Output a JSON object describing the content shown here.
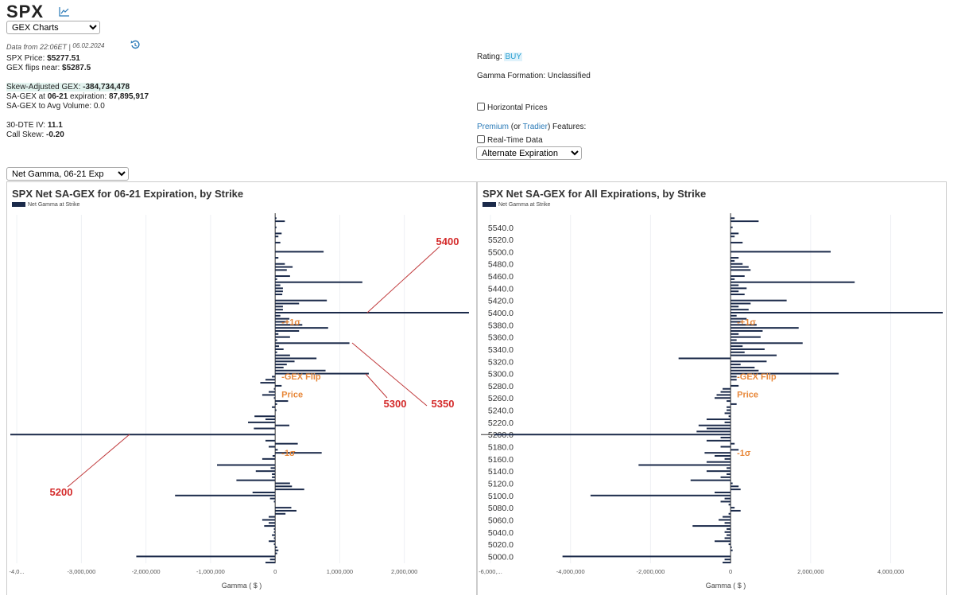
{
  "header": {
    "symbol": "SPX",
    "chart_icon": "line-chart-icon",
    "view_select": "GEX Charts",
    "data_from": "Data from 22:06ET |",
    "date": "06.02.2024",
    "refresh_icon": "history-icon"
  },
  "stats": {
    "price_label": "SPX Price: ",
    "price": "$5277.51",
    "flip_label": "GEX flips near: ",
    "flip": "$5287.5",
    "sagex_label": "Skew-Adjusted GEX: ",
    "sagex": "-384,734,478",
    "sagex_exp_label_a": "SA-GEX at ",
    "sagex_exp_date": "06-21",
    "sagex_exp_label_b": " expiration: ",
    "sagex_exp": "87,895,917",
    "avgvol": "SA-GEX to Avg Volume: 0.0",
    "iv_label": "30-DTE IV: ",
    "iv": "11.1",
    "skew_label": "Call Skew: ",
    "skew": "-0.20"
  },
  "right_info": {
    "rating_label": "Rating: ",
    "rating": "BUY",
    "formation": "Gamma Formation: Unclassified",
    "horizontal": "Horizontal Prices",
    "premium": "Premium",
    "or": " (or ",
    "tradier": "Tradier",
    "features": ") Features:",
    "realtime": "Real-Time Data",
    "alt_exp": "Alternate Expiration"
  },
  "chart_select": "Net Gamma, 06-21 Exp",
  "colors": {
    "bar": "#1b2a4a",
    "annot": "#e8883a",
    "red": "#d42a2a",
    "rating_bg": "#dff2fb"
  },
  "chart_data": [
    {
      "type": "bar",
      "title": "SPX Net SA-GEX for 06-21 Expiration, by Strike",
      "legend": "Net Gamma at Strike",
      "xlabel": "Gamma ( $ )",
      "xlim": [
        -4100000,
        3050000
      ],
      "xticks": [
        {
          "v": -4000000,
          "l": "-4,0..."
        },
        {
          "v": -3000000,
          "l": "-3,000,000"
        },
        {
          "v": -2000000,
          "l": "-2,000,000"
        },
        {
          "v": -1000000,
          "l": "-1,000,000"
        },
        {
          "v": 0,
          "l": "0"
        },
        {
          "v": 1000000,
          "l": "1,000,000"
        },
        {
          "v": 2000000,
          "l": "2,000,000"
        }
      ],
      "yticks": [],
      "bars": [
        [
          5555,
          0.02
        ],
        [
          5550,
          0.15
        ],
        [
          5540,
          0.02
        ],
        [
          5530,
          0.1
        ],
        [
          5525,
          0.05
        ],
        [
          5515,
          0.08
        ],
        [
          5500,
          0.75
        ],
        [
          5490,
          0.05
        ],
        [
          5480,
          0.15
        ],
        [
          5475,
          0.27
        ],
        [
          5470,
          0.18
        ],
        [
          5460,
          0.23
        ],
        [
          5455,
          0.03
        ],
        [
          5450,
          1.35
        ],
        [
          5445,
          0.08
        ],
        [
          5440,
          0.12
        ],
        [
          5435,
          0.12
        ],
        [
          5430,
          0.11
        ],
        [
          5420,
          0.8
        ],
        [
          5415,
          0.37
        ],
        [
          5410,
          0.12
        ],
        [
          5405,
          0.12
        ],
        [
          5400,
          3.0
        ],
        [
          5395,
          0.08
        ],
        [
          5390,
          0.22
        ],
        [
          5385,
          0.2
        ],
        [
          5380,
          0.42
        ],
        [
          5375,
          0.82
        ],
        [
          5370,
          0.37
        ],
        [
          5365,
          0.05
        ],
        [
          5360,
          0.23
        ],
        [
          5355,
          0.03
        ],
        [
          5350,
          1.15
        ],
        [
          5345,
          0.06
        ],
        [
          5340,
          0.13
        ],
        [
          5335,
          0.03
        ],
        [
          5330,
          0.23
        ],
        [
          5325,
          0.64
        ],
        [
          5320,
          0.3
        ],
        [
          5315,
          0.18
        ],
        [
          5310,
          0.13
        ],
        [
          5305,
          0.78
        ],
        [
          5300,
          1.45
        ],
        [
          5295,
          -0.05
        ],
        [
          5290,
          -0.15
        ],
        [
          5285,
          -0.23
        ],
        [
          5280,
          0.1
        ],
        [
          5275,
          -0.02
        ],
        [
          5270,
          -0.1
        ],
        [
          5265,
          -0.2
        ],
        [
          5260,
          -0.02
        ],
        [
          5255,
          0.2
        ],
        [
          5250,
          0.03
        ],
        [
          5245,
          -0.05
        ],
        [
          5240,
          0.02
        ],
        [
          5230,
          -0.32
        ],
        [
          5225,
          -0.15
        ],
        [
          5220,
          -0.42
        ],
        [
          5215,
          0.22
        ],
        [
          5210,
          -0.33
        ],
        [
          5200,
          -4.1
        ],
        [
          5190,
          -0.15
        ],
        [
          5185,
          0.35
        ],
        [
          5180,
          -0.1
        ],
        [
          5175,
          0.04
        ],
        [
          5170,
          0.72
        ],
        [
          5165,
          -0.04
        ],
        [
          5160,
          -0.2
        ],
        [
          5150,
          -0.9
        ],
        [
          5145,
          -0.07
        ],
        [
          5140,
          -0.3
        ],
        [
          5135,
          -0.05
        ],
        [
          5130,
          -0.05
        ],
        [
          5125,
          -0.6
        ],
        [
          5120,
          0.23
        ],
        [
          5115,
          0.26
        ],
        [
          5110,
          0.45
        ],
        [
          5105,
          -0.35
        ],
        [
          5100,
          -1.55
        ],
        [
          5095,
          -0.08
        ],
        [
          5090,
          -0.02
        ],
        [
          5080,
          0.25
        ],
        [
          5075,
          0.33
        ],
        [
          5070,
          0.16
        ],
        [
          5065,
          -0.1
        ],
        [
          5060,
          -0.2
        ],
        [
          5055,
          -0.1
        ],
        [
          5050,
          -0.17
        ],
        [
          5045,
          -0.02
        ],
        [
          5040,
          -0.02
        ],
        [
          5035,
          -0.05
        ],
        [
          5030,
          -0.02
        ],
        [
          5025,
          -0.1
        ],
        [
          5020,
          -0.02
        ],
        [
          5015,
          0.03
        ],
        [
          5010,
          0.05
        ],
        [
          5005,
          0.03
        ],
        [
          5000,
          -2.15
        ],
        [
          4995,
          -0.08
        ],
        [
          4990,
          -0.15
        ]
      ],
      "annotations": [
        {
          "label": "+1σ",
          "strike": 5385
        },
        {
          "label": "GEX Flip",
          "strike": 5288
        },
        {
          "label": "Price",
          "strike": 5278
        },
        {
          "label": "-1σ",
          "strike": 5170
        }
      ],
      "callouts": [
        "5400",
        "5350",
        "5300",
        "5200"
      ]
    },
    {
      "type": "bar",
      "title": "SPX Net SA-GEX for All Expirations, by Strike",
      "legend": "Net Gamma at Strike",
      "xlabel": "Gamma ( $ )",
      "xlim": [
        -6000000,
        5300000
      ],
      "xticks": [
        {
          "v": -6000000,
          "l": "-6,000,..."
        },
        {
          "v": -4000000,
          "l": "-4,000,000"
        },
        {
          "v": -2000000,
          "l": "-2,000,000"
        },
        {
          "v": 0,
          "l": "0"
        },
        {
          "v": 2000000,
          "l": "2,000,000"
        },
        {
          "v": 4000000,
          "l": "4,000,000"
        }
      ],
      "yticks": [
        "5540.0",
        "5520.0",
        "5500.0",
        "5480.0",
        "5460.0",
        "5440.0",
        "5420.0",
        "5400.0",
        "5380.0",
        "5360.0",
        "5340.0",
        "5320.0",
        "5300.0",
        "5280.0",
        "5260.0",
        "5240.0",
        "5220.0",
        "5200.0",
        "5180.0",
        "5160.0",
        "5140.0",
        "5120.0",
        "5100.0",
        "5080.0",
        "5060.0",
        "5040.0",
        "5020.0",
        "5000.0"
      ],
      "bars": [
        [
          5555,
          0.1
        ],
        [
          5550,
          0.7
        ],
        [
          5540,
          0.05
        ],
        [
          5530,
          0.2
        ],
        [
          5525,
          0.1
        ],
        [
          5515,
          0.3
        ],
        [
          5500,
          2.5
        ],
        [
          5490,
          0.2
        ],
        [
          5485,
          0.1
        ],
        [
          5480,
          0.3
        ],
        [
          5475,
          0.45
        ],
        [
          5470,
          0.5
        ],
        [
          5460,
          0.35
        ],
        [
          5455,
          0.1
        ],
        [
          5450,
          3.1
        ],
        [
          5445,
          0.2
        ],
        [
          5440,
          0.4
        ],
        [
          5435,
          0.2
        ],
        [
          5430,
          0.35
        ],
        [
          5420,
          1.4
        ],
        [
          5415,
          0.5
        ],
        [
          5410,
          0.2
        ],
        [
          5405,
          0.45
        ],
        [
          5400,
          5.3
        ],
        [
          5395,
          0.15
        ],
        [
          5390,
          0.4
        ],
        [
          5385,
          0.3
        ],
        [
          5380,
          0.65
        ],
        [
          5375,
          1.7
        ],
        [
          5370,
          0.8
        ],
        [
          5365,
          0.2
        ],
        [
          5360,
          0.75
        ],
        [
          5355,
          0.15
        ],
        [
          5350,
          1.8
        ],
        [
          5345,
          0.3
        ],
        [
          5340,
          0.85
        ],
        [
          5335,
          0.35
        ],
        [
          5330,
          1.15
        ],
        [
          5325,
          -1.3
        ],
        [
          5320,
          0.9
        ],
        [
          5315,
          0.25
        ],
        [
          5310,
          0.6
        ],
        [
          5305,
          0.7
        ],
        [
          5300,
          2.7
        ],
        [
          5295,
          0.15
        ],
        [
          5290,
          0.15
        ],
        [
          5280,
          0.2
        ],
        [
          5275,
          -0.2
        ],
        [
          5270,
          -0.25
        ],
        [
          5265,
          -0.35
        ],
        [
          5260,
          -0.4
        ],
        [
          5255,
          -0.1
        ],
        [
          5250,
          0.15
        ],
        [
          5245,
          -0.1
        ],
        [
          5240,
          -0.1
        ],
        [
          5235,
          -0.15
        ],
        [
          5230,
          -0.05
        ],
        [
          5225,
          -0.6
        ],
        [
          5220,
          -0.15
        ],
        [
          5215,
          -0.8
        ],
        [
          5210,
          -0.6
        ],
        [
          5205,
          -0.85
        ],
        [
          5200,
          -5.9
        ],
        [
          5195,
          -0.25
        ],
        [
          5190,
          -0.6
        ],
        [
          5185,
          0.1
        ],
        [
          5180,
          -0.25
        ],
        [
          5175,
          0.2
        ],
        [
          5170,
          -0.65
        ],
        [
          5165,
          -0.4
        ],
        [
          5160,
          -0.15
        ],
        [
          5155,
          -0.6
        ],
        [
          5150,
          -2.3
        ],
        [
          5145,
          -0.1
        ],
        [
          5140,
          -0.6
        ],
        [
          5135,
          -0.1
        ],
        [
          5130,
          -0.25
        ],
        [
          5125,
          -1.0
        ],
        [
          5120,
          0.05
        ],
        [
          5115,
          0.2
        ],
        [
          5110,
          0.25
        ],
        [
          5105,
          -0.4
        ],
        [
          5100,
          -3.5
        ],
        [
          5095,
          -0.15
        ],
        [
          5090,
          -0.25
        ],
        [
          5085,
          -0.05
        ],
        [
          5080,
          0.1
        ],
        [
          5075,
          0.25
        ],
        [
          5070,
          -0.05
        ],
        [
          5065,
          -0.2
        ],
        [
          5060,
          -0.3
        ],
        [
          5055,
          -0.15
        ],
        [
          5050,
          -0.95
        ],
        [
          5045,
          -0.1
        ],
        [
          5040,
          -0.15
        ],
        [
          5035,
          -0.1
        ],
        [
          5030,
          -0.15
        ],
        [
          5025,
          -0.4
        ],
        [
          5020,
          -0.05
        ],
        [
          5015,
          0.03
        ],
        [
          5010,
          0.05
        ],
        [
          5000,
          -4.2
        ],
        [
          4995,
          -0.15
        ],
        [
          4990,
          -0.2
        ]
      ],
      "annotations": [
        {
          "label": "+1σ",
          "strike": 5385
        },
        {
          "label": "GEX Flip",
          "strike": 5288
        },
        {
          "label": "Price",
          "strike": 5278
        },
        {
          "label": "-1σ",
          "strike": 5170
        }
      ],
      "callouts": []
    }
  ]
}
